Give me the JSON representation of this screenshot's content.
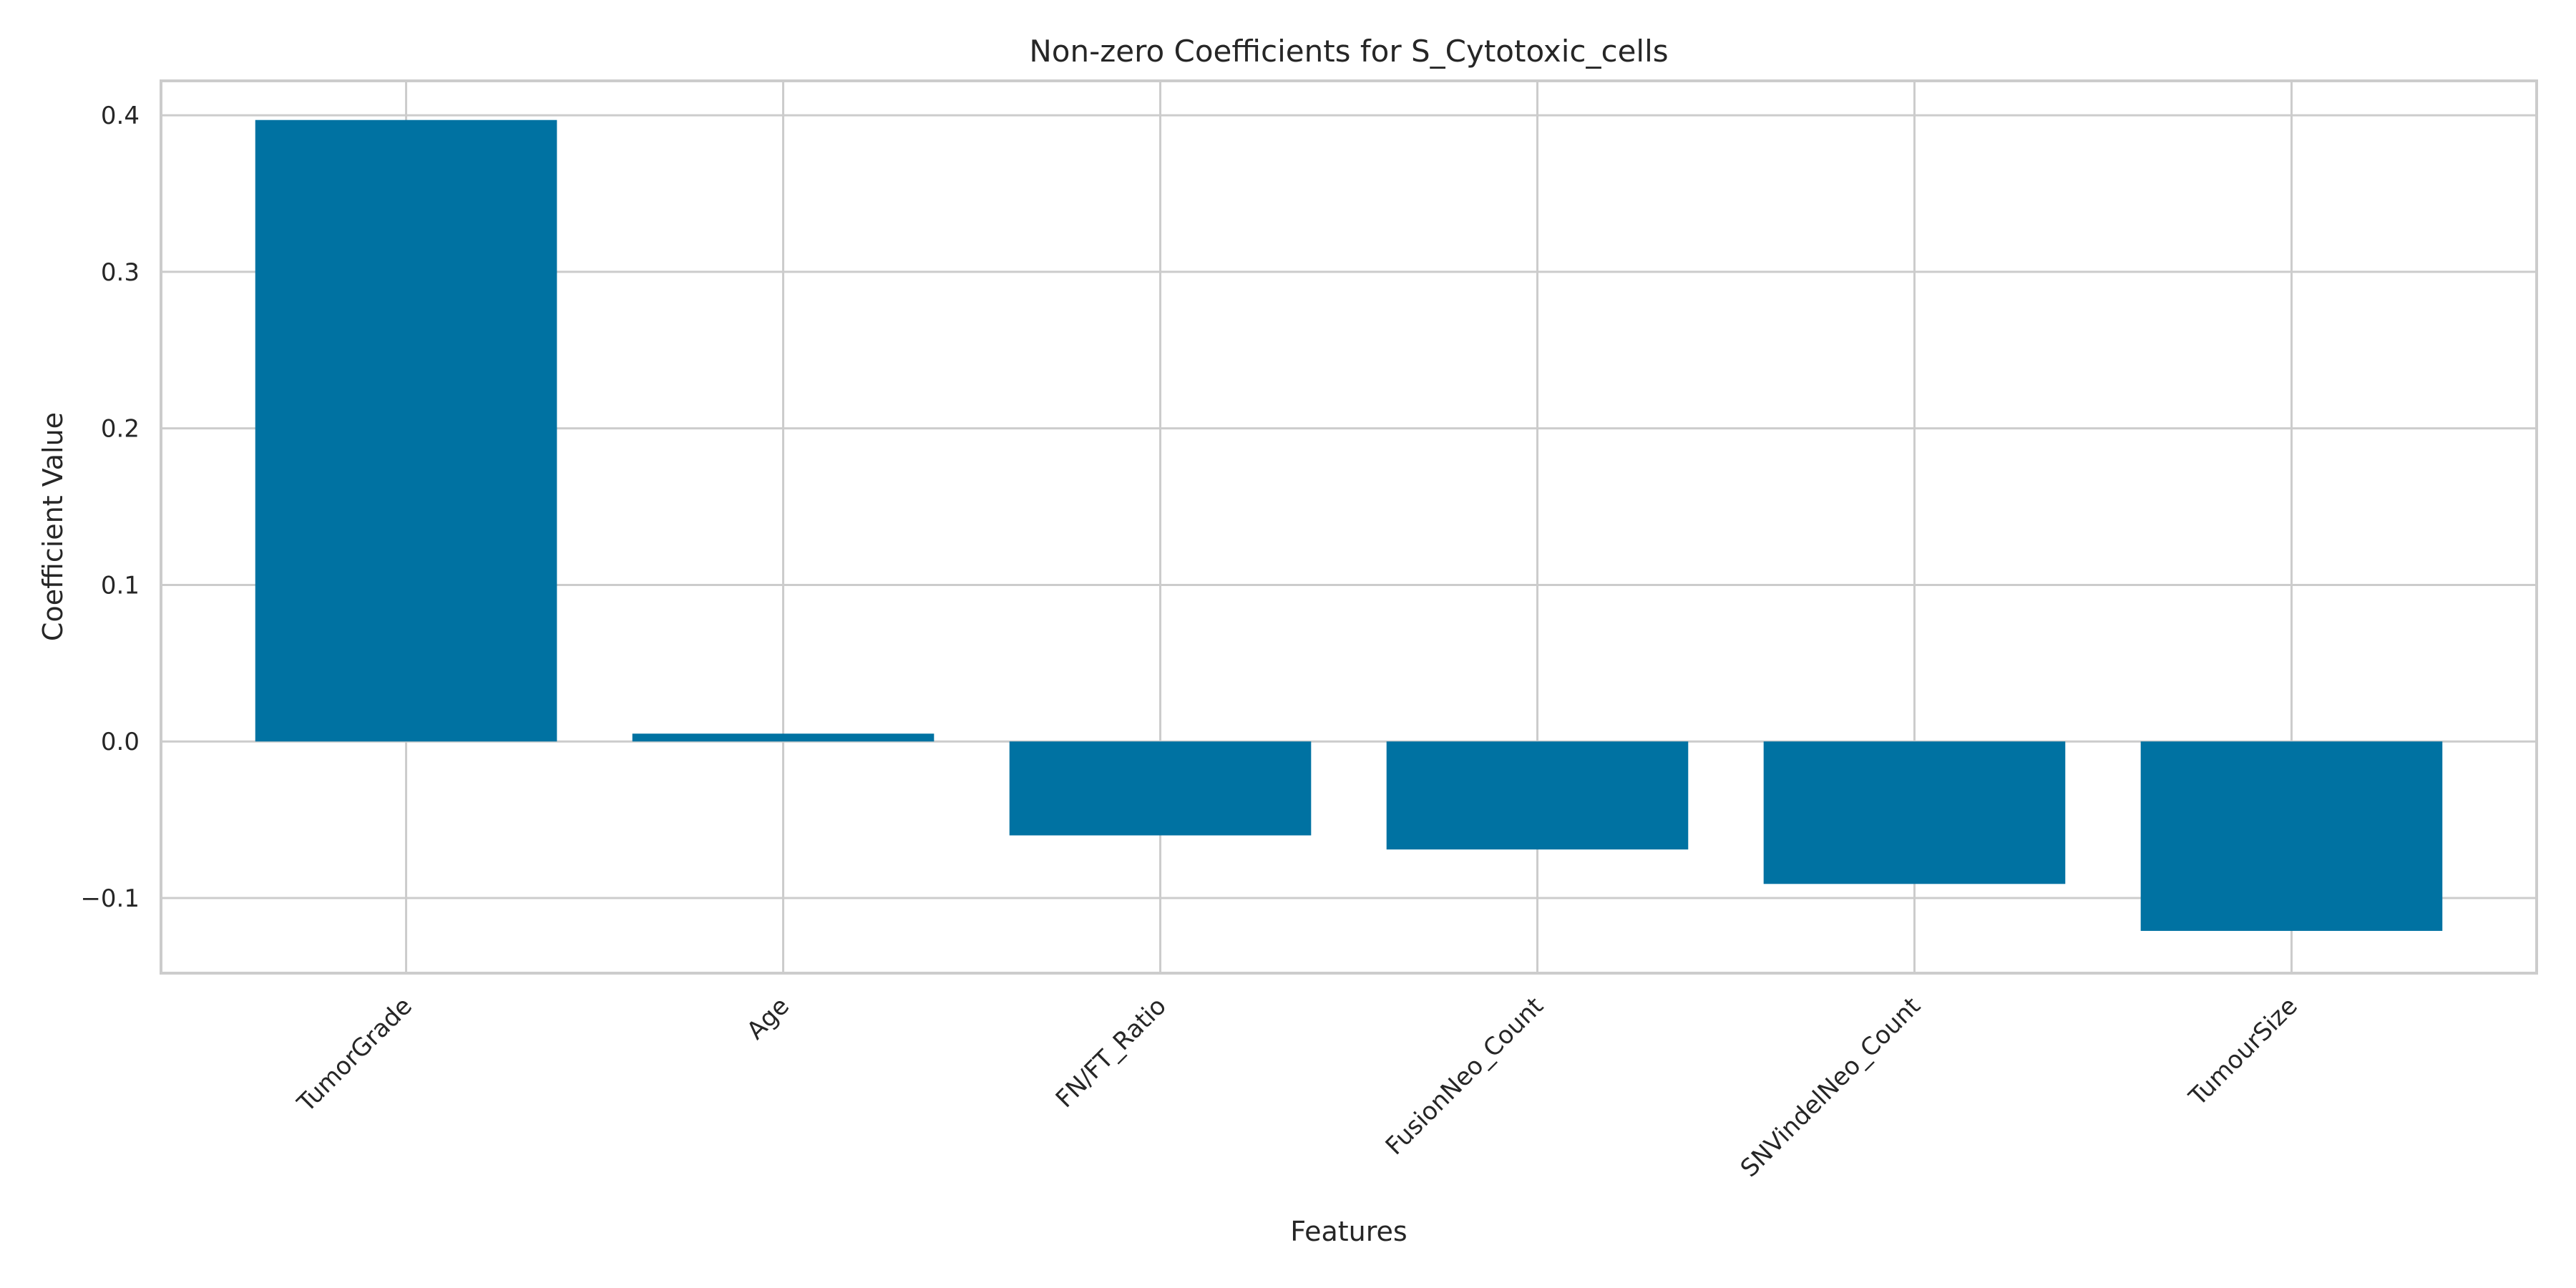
{
  "chart_data": {
    "type": "bar",
    "title": "Non-zero Coefficients for S_Cytotoxic_cells",
    "xlabel": "Features",
    "ylabel": "Coefficient Value",
    "categories": [
      "TumorGrade",
      "Age",
      "FN/FT_Ratio",
      "FusionNeo_Count",
      "SNVindelNeo_Count",
      "TumourSize"
    ],
    "values": [
      0.397,
      0.005,
      -0.06,
      -0.069,
      -0.091,
      -0.121
    ],
    "ylim": [
      -0.148,
      0.422
    ],
    "yticks": [
      -0.1,
      0.0,
      0.1,
      0.2,
      0.3,
      0.4
    ],
    "ytick_labels": [
      "−0.1",
      "0.0",
      "0.1",
      "0.2",
      "0.3",
      "0.4"
    ],
    "bar_color": "#0072a2",
    "grid": true
  }
}
